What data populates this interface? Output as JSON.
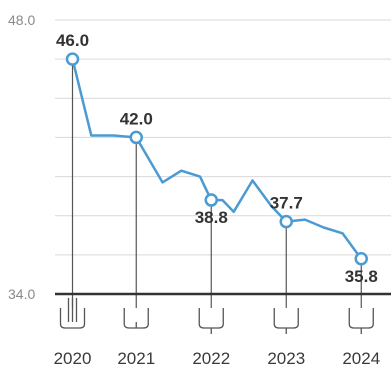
{
  "chart_data": {
    "type": "line",
    "title": "",
    "xlabel": "",
    "ylabel": "",
    "ylim": [
      34.0,
      48.0
    ],
    "y_tick_labels": [
      "48.0",
      "34.0"
    ],
    "x_tick_labels": [
      "2020",
      "2021",
      "2022",
      "2023",
      "2024"
    ],
    "grid": true,
    "series": [
      {
        "color": "#4a9bd4",
        "points": [
          {
            "t": 2020.2,
            "v": 46.0
          },
          {
            "t": 2020.45,
            "v": 42.1
          },
          {
            "t": 2020.75,
            "v": 42.1
          },
          {
            "t": 2021.05,
            "v": 42.0
          },
          {
            "t": 2021.4,
            "v": 39.7
          },
          {
            "t": 2021.65,
            "v": 40.3
          },
          {
            "t": 2021.9,
            "v": 40.0
          },
          {
            "t": 2022.05,
            "v": 38.8
          },
          {
            "t": 2022.2,
            "v": 38.8
          },
          {
            "t": 2022.35,
            "v": 38.2
          },
          {
            "t": 2022.6,
            "v": 39.8
          },
          {
            "t": 2022.85,
            "v": 38.5
          },
          {
            "t": 2023.05,
            "v": 37.7
          },
          {
            "t": 2023.3,
            "v": 37.8
          },
          {
            "t": 2023.55,
            "v": 37.4
          },
          {
            "t": 2023.8,
            "v": 37.1
          },
          {
            "t": 2024.05,
            "v": 35.8
          }
        ]
      }
    ],
    "highlighted_points": [
      {
        "t": 2020.2,
        "v": 46.0,
        "label": "46.0",
        "position": "above"
      },
      {
        "t": 2021.05,
        "v": 42.0,
        "label": "42.0",
        "position": "above"
      },
      {
        "t": 2022.05,
        "v": 38.8,
        "label": "38.8",
        "position": "below"
      },
      {
        "t": 2023.05,
        "v": 37.7,
        "label": "37.7",
        "position": "above"
      },
      {
        "t": 2024.05,
        "v": 35.8,
        "label": "35.8",
        "position": "below"
      }
    ],
    "year_ticks": [
      {
        "label": "2020",
        "t": 2020.2,
        "style": "bars"
      },
      {
        "label": "2021",
        "t": 2021.05,
        "style": "cup"
      },
      {
        "label": "2022",
        "t": 2022.05,
        "style": "fork"
      },
      {
        "label": "2023",
        "t": 2023.05,
        "style": "fork"
      },
      {
        "label": "2024",
        "t": 2024.05,
        "style": "fork"
      }
    ]
  }
}
